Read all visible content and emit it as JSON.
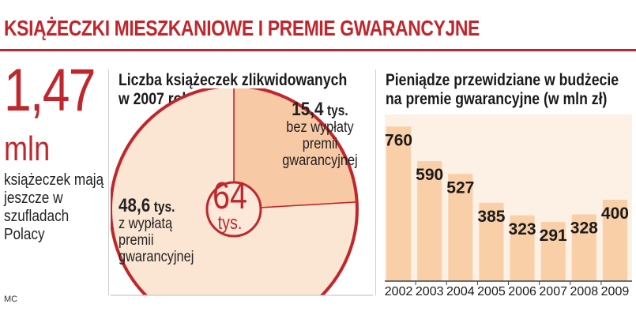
{
  "header": {
    "title": "KSIĄŻECZKI MIESZKANIOWE I PREMIE GWARANCYJNE"
  },
  "stat": {
    "value": "1,47",
    "unit": "mln",
    "description": "książeczek mają jeszcze w szufladach Polacy"
  },
  "credit": "MC",
  "chart_data": [
    {
      "type": "pie",
      "title": "Liczba książeczek zlikwidowanych w 2007 roku",
      "total": {
        "value": "64",
        "unit": "tys."
      },
      "slices": [
        {
          "value": 15.4,
          "value_label": "15,4",
          "unit": "tys.",
          "label": "bez wypłaty premii gwarancyjnej",
          "color": "#f7c9a5"
        },
        {
          "value": 48.6,
          "value_label": "48,6",
          "unit": "tys.",
          "label": "z wypłatą premii gwarancyjnej",
          "color": "#fbe6d4"
        }
      ],
      "ring_color": "#c0272d"
    },
    {
      "type": "bar",
      "title": "Pieniądze przewidziane w budżecie na premie gwarancyjne (w mln zł)",
      "categories": [
        "2002",
        "2003",
        "2004",
        "2005",
        "2006",
        "2007",
        "2008",
        "2009"
      ],
      "values": [
        760,
        590,
        527,
        385,
        323,
        291,
        328,
        400
      ],
      "ylim": [
        0,
        800
      ],
      "bar_color": "#f9cfa8",
      "background_color": "#fdf0e4"
    }
  ]
}
